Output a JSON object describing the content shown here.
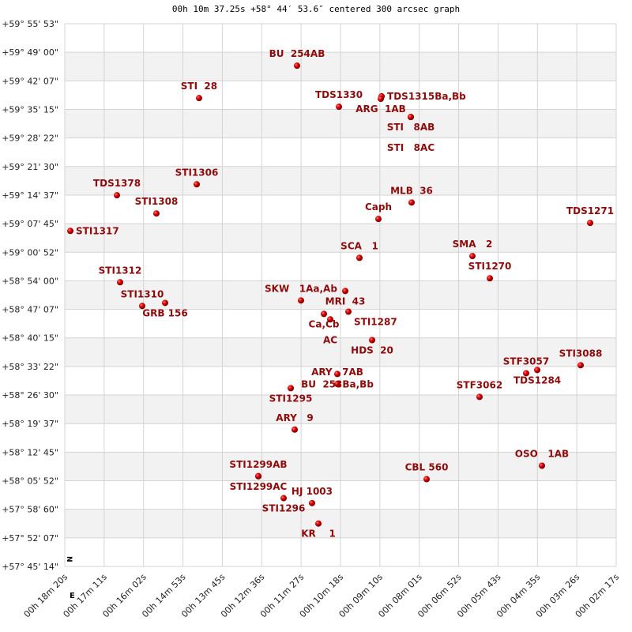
{
  "chart_data": {
    "type": "scatter",
    "title": "00h 10m 37.25s +58° 44′ 53.6″ centered 300 arcsec graph",
    "x_unit": "RA seconds past 00h",
    "y_unit": "Dec degrees",
    "xlim": [
      1100,
      137
    ],
    "ylim": [
      59.93139,
      57.75389
    ],
    "grid": true,
    "x_ticks": [
      "00h 18m 20s",
      "00h 17m 11s",
      "00h 16m 02s",
      "00h 14m 53s",
      "00h 13m 45s",
      "00h 12m 36s",
      "00h 11m 27s",
      "00h 10m 18s",
      "00h 09m 10s",
      "00h 08m 01s",
      "00h 06m 52s",
      "00h 05m 43s",
      "00h 04m 35s",
      "00h 03m 26s",
      "00h 02m 17s"
    ],
    "y_ticks": [
      "+59° 55' 53\"",
      "+59° 49' 00\"",
      "+59° 42' 07\"",
      "+59° 35' 15\"",
      "+59° 28' 22\"",
      "+59° 21' 30\"",
      "+59° 14' 37\"",
      "+59° 07' 45\"",
      "+59° 00' 52\"",
      "+58° 54' 00\"",
      "+58° 47' 07\"",
      "+58° 40' 15\"",
      "+58° 33' 22\"",
      "+58° 26' 30\"",
      "+58° 19' 37\"",
      "+58° 12' 45\"",
      "+58° 05' 52\"",
      "+57° 58' 60\"",
      "+57° 52' 07\"",
      "+57° 45' 14\""
    ],
    "compass": {
      "north": "N",
      "east": "E"
    },
    "point_color": "#e00000",
    "label_color": "#8f0b0b",
    "points": [
      {
        "label": "BU  254AB",
        "ra": 694.4,
        "dec": 59.763
      },
      {
        "label": "STI  28",
        "ra": 865.5,
        "dec": 59.633
      },
      {
        "label": "TDS1330",
        "ra": 621.2,
        "dec": 59.598
      },
      {
        "label": "TDS1315Ba,Bb",
        "ra": 546.7,
        "dec": 59.64
      },
      {
        "label": "ARG  1AB",
        "ra": 548.1,
        "dec": 59.63
      },
      {
        "label": "STI   8AB",
        "ra": 495.7,
        "dec": 59.557
      },
      {
        "label": "STI   8AC",
        "ra": 495.7,
        "dec": 59.557
      },
      {
        "label": "STI1306",
        "ra": 869.6,
        "dec": 59.287
      },
      {
        "label": "TDS1378",
        "ra": 1008.9,
        "dec": 59.243
      },
      {
        "label": "STI1308",
        "ra": 940.0,
        "dec": 59.17
      },
      {
        "label": "STI1317",
        "ra": 1090.3,
        "dec": 59.1
      },
      {
        "label": "Caph",
        "ra": 552.3,
        "dec": 59.148
      },
      {
        "label": "MLB  36",
        "ra": 494.3,
        "dec": 59.214
      },
      {
        "label": "TDS1271",
        "ra": 182.5,
        "dec": 59.132
      },
      {
        "label": "SCA   1",
        "ra": 585.4,
        "dec": 58.992
      },
      {
        "label": "SMA   2",
        "ra": 388.1,
        "dec": 58.999
      },
      {
        "label": "STI1270",
        "ra": 357.7,
        "dec": 58.91
      },
      {
        "label": "STI1312",
        "ra": 1003.4,
        "dec": 58.894
      },
      {
        "label": "STI1310",
        "ra": 964.8,
        "dec": 58.799
      },
      {
        "label": "GRB 156",
        "ra": 924.8,
        "dec": 58.811
      },
      {
        "label": "SKW   1Aa,Ab",
        "ra": 687.5,
        "dec": 58.821
      },
      {
        "label": "MRI  43",
        "ra": 610.2,
        "dec": 58.859
      },
      {
        "label": "Ca,Cb",
        "ra": 647.5,
        "dec": 58.767
      },
      {
        "label": "AC",
        "ra": 636.4,
        "dec": 58.745
      },
      {
        "label": "STI1287",
        "ra": 604.7,
        "dec": 58.776
      },
      {
        "label": "HDS  20",
        "ra": 563.3,
        "dec": 58.662
      },
      {
        "label": "BU  253Ba,Bb",
        "ra": 624.0,
        "dec": 58.526
      },
      {
        "label": "ARY   7AB",
        "ra": 624.0,
        "dec": 58.486
      },
      {
        "label": "STF3062",
        "ra": 375.7,
        "dec": 58.434
      },
      {
        "label": "STF3057",
        "ra": 294.3,
        "dec": 58.529
      },
      {
        "label": "TDS1284",
        "ra": 274.9,
        "dec": 58.542
      },
      {
        "label": "STI3088",
        "ra": 199.1,
        "dec": 58.561
      },
      {
        "label": "STI1295",
        "ra": 705.4,
        "dec": 58.469
      },
      {
        "label": "ARY   9",
        "ra": 698.5,
        "dec": 58.303
      },
      {
        "label": "STI1299AB",
        "ra": 762.0,
        "dec": 58.116
      },
      {
        "label": "STI1299AC",
        "ra": 762.0,
        "dec": 58.116
      },
      {
        "label": "OSO   1AB",
        "ra": 266.7,
        "dec": 58.158
      },
      {
        "label": "CBL 560",
        "ra": 468.1,
        "dec": 58.104
      },
      {
        "label": "STI1296",
        "ra": 717.8,
        "dec": 58.028
      },
      {
        "label": "HJ 1003",
        "ra": 668.2,
        "dec": 58.008
      },
      {
        "label": "KR    1",
        "ra": 657.1,
        "dec": 57.926
      }
    ]
  }
}
